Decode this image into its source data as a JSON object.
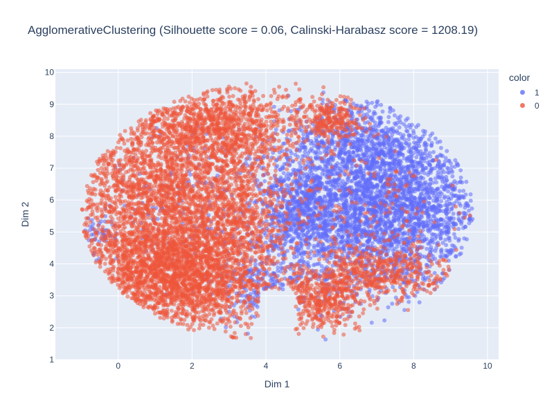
{
  "chart_data": {
    "type": "scatter",
    "title": "AgglomerativeClustering (Silhouette score = 0.06, Calinski-Harabasz score = 1208.19)",
    "xlabel": "Dim 1",
    "ylabel": "Dim 2",
    "xlim": [
      -1.7,
      10.3
    ],
    "ylim": [
      1,
      10.1
    ],
    "x_ticks": [
      0,
      2,
      4,
      6,
      8,
      10
    ],
    "y_ticks": [
      1,
      2,
      3,
      4,
      5,
      6,
      7,
      8,
      9,
      10
    ],
    "grid": true,
    "legend": {
      "title": "color",
      "placement": "top-right",
      "entries": [
        {
          "label": "1",
          "color": "#636efa"
        },
        {
          "label": "0",
          "color": "#ef553b"
        }
      ]
    },
    "series": [
      {
        "name": "1",
        "color": "#636efa",
        "regions": [
          {
            "center": [
              7.2,
              5.8
            ],
            "spread": [
              1.45,
              1.3
            ],
            "count": 3000
          },
          {
            "center": [
              5.0,
              5.5
            ],
            "spread": [
              0.6,
              1.1
            ],
            "count": 700
          },
          {
            "center": [
              6.5,
              7.8
            ],
            "spread": [
              0.9,
              0.7
            ],
            "count": 500
          },
          {
            "center": [
              3.7,
              3.3
            ],
            "spread": [
              0.45,
              0.55
            ],
            "count": 150
          },
          {
            "center": [
              -0.5,
              5.0
            ],
            "spread": [
              0.2,
              0.3
            ],
            "count": 50
          },
          {
            "center": [
              2.2,
              6.0
            ],
            "spread": [
              1.2,
              1.5
            ],
            "count": 200
          }
        ]
      },
      {
        "name": "0",
        "color": "#ef553b",
        "regions": [
          {
            "center": [
              1.6,
              3.7
            ],
            "spread": [
              1.25,
              0.9
            ],
            "count": 2200
          },
          {
            "center": [
              1.2,
              6.2
            ],
            "spread": [
              1.3,
              1.4
            ],
            "count": 2000
          },
          {
            "center": [
              2.8,
              8.3
            ],
            "spread": [
              1.2,
              0.65
            ],
            "count": 1000
          },
          {
            "center": [
              3.3,
              5.5
            ],
            "spread": [
              0.7,
              1.0
            ],
            "count": 500
          },
          {
            "center": [
              5.5,
              2.9
            ],
            "spread": [
              0.6,
              0.45
            ],
            "count": 400
          },
          {
            "center": [
              7.0,
              3.7
            ],
            "spread": [
              1.0,
              0.45
            ],
            "count": 500
          },
          {
            "center": [
              5.7,
              8.5
            ],
            "spread": [
              0.5,
              0.35
            ],
            "count": 250
          },
          {
            "center": [
              7.0,
              5.5
            ],
            "spread": [
              1.3,
              1.0
            ],
            "count": 150
          }
        ]
      }
    ]
  }
}
